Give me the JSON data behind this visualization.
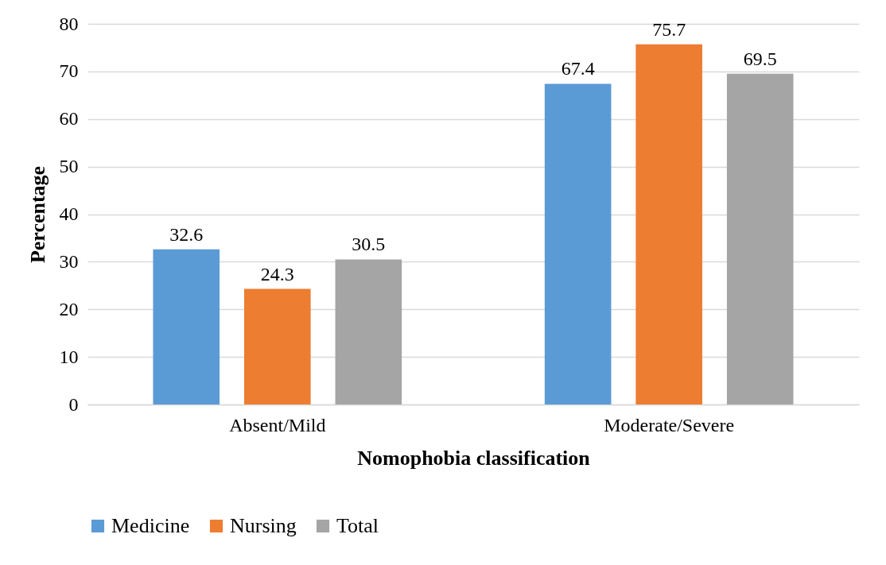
{
  "chart_data": {
    "type": "bar",
    "xlabel": "Nomophobia classification",
    "ylabel": "Percentage",
    "categories": [
      "Absent/Mild",
      "Moderate/Severe"
    ],
    "series": [
      {
        "name": "Medicine",
        "color": "#5b9bd5",
        "values": [
          32.6,
          67.4
        ]
      },
      {
        "name": "Nursing",
        "color": "#ed7d31",
        "values": [
          24.3,
          75.7
        ]
      },
      {
        "name": "Total",
        "color": "#a5a5a5",
        "values": [
          30.5,
          69.5
        ]
      }
    ],
    "ylim": [
      0,
      80
    ],
    "yticks": [
      0,
      10,
      20,
      30,
      40,
      50,
      60,
      70,
      80
    ],
    "grid": "y",
    "legend": "bottom",
    "data_labels": true
  }
}
